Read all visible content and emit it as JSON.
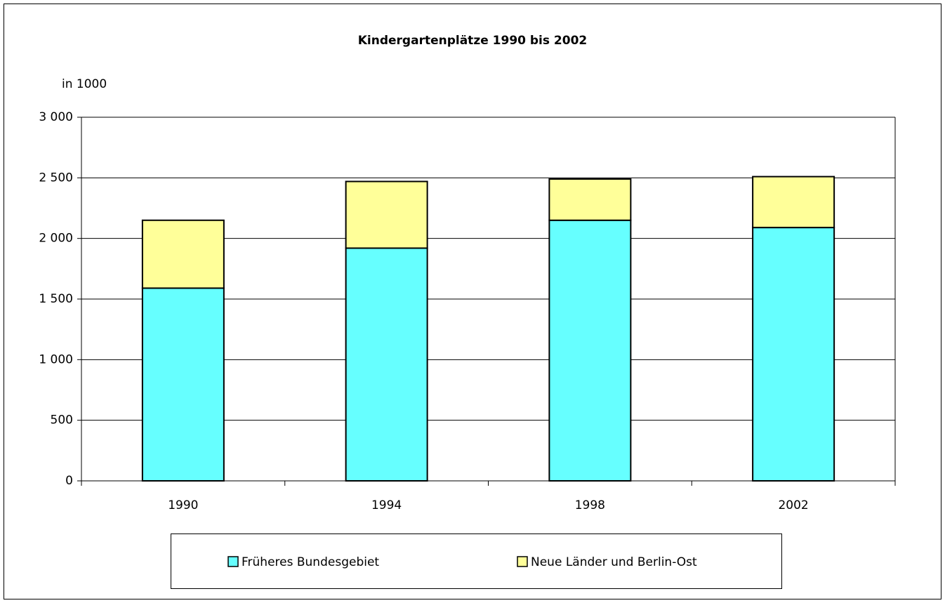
{
  "chart_data": {
    "type": "stacked_bar",
    "title": "Kindergartenplätze 1990 bis 2002",
    "y_axis_label": "in 1000",
    "categories": [
      "1990",
      "1994",
      "1998",
      "2002"
    ],
    "series": [
      {
        "name": "Früheres Bundesgebiet",
        "color": "#66ffff",
        "values": [
          1590,
          1920,
          2150,
          2090
        ]
      },
      {
        "name": "Neue Länder und Berlin-Ost",
        "color": "#ffff99",
        "values": [
          560,
          550,
          340,
          420
        ]
      }
    ],
    "ylim": [
      0,
      3000
    ],
    "yticks": [
      0,
      500,
      {
        "value": 1000,
        "label": "1 000"
      },
      {
        "value": 1500,
        "label": "1 500"
      },
      {
        "value": 2000,
        "label": "2 000"
      },
      {
        "value": 2500,
        "label": "2 500"
      },
      {
        "value": 3000,
        "label": "3 000"
      }
    ],
    "grid": true,
    "legend": "bottom"
  }
}
